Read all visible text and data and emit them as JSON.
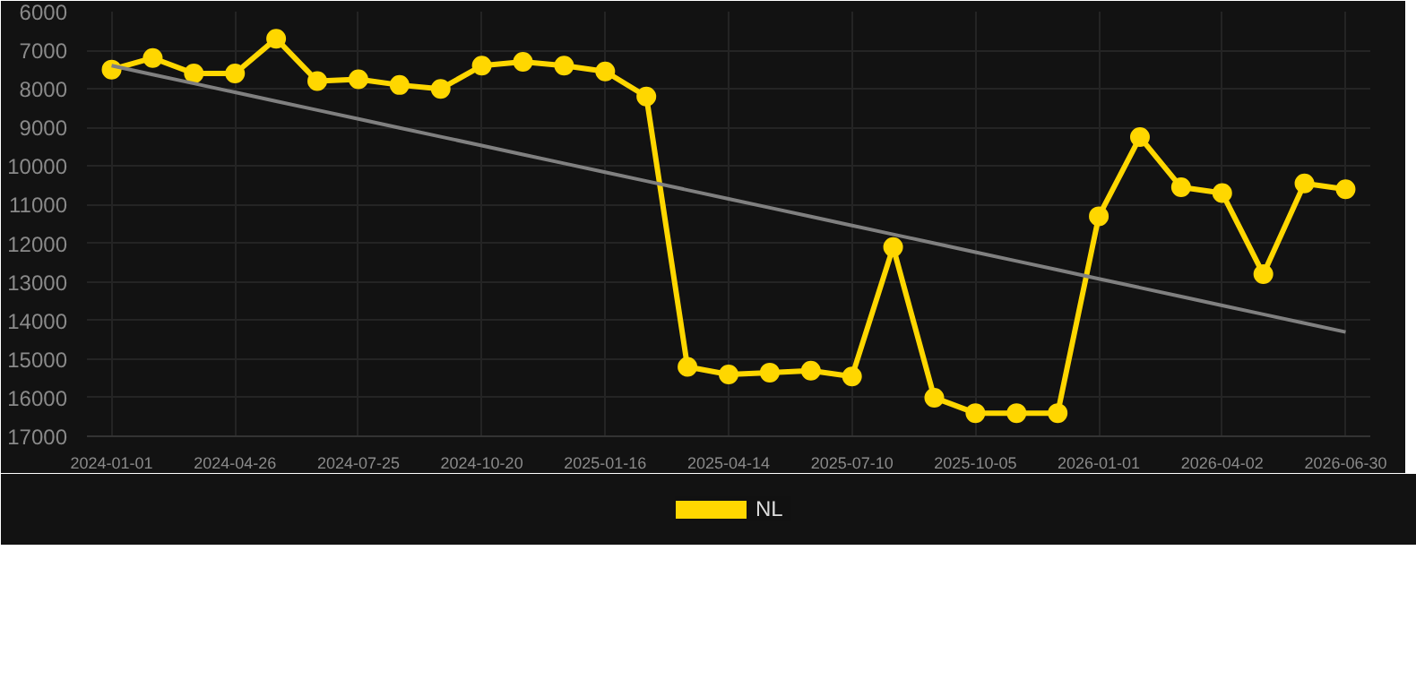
{
  "chart_data": {
    "type": "line",
    "categories": [
      "2024-01-01",
      null,
      null,
      "2024-04-26",
      null,
      null,
      "2024-07-25",
      null,
      null,
      "2024-10-20",
      null,
      null,
      "2025-01-16",
      null,
      null,
      "2025-04-14",
      null,
      null,
      "2025-07-10",
      null,
      null,
      "2025-10-05",
      null,
      null,
      "2026-01-01",
      null,
      null,
      "2026-04-02",
      null,
      null,
      "2026-06-30"
    ],
    "series": [
      {
        "name": "NL",
        "color": "#ffd700",
        "values": [
          7500,
          7200,
          7600,
          7600,
          6700,
          7800,
          7750,
          7900,
          8000,
          7400,
          7300,
          7400,
          7550,
          8200,
          15200,
          15400,
          15350,
          15300,
          15450,
          12100,
          16000,
          16400,
          16400,
          16400,
          11300,
          9250,
          10550,
          10700,
          12800,
          10450,
          10600
        ]
      },
      {
        "type": "line",
        "color": "#808080",
        "marker": "none",
        "values": [
          7400,
          7630,
          7860,
          8090,
          8320,
          8550,
          8780,
          9010,
          9240,
          9470,
          9700,
          9930,
          10160,
          10390,
          10620,
          10850,
          11080,
          11310,
          11540,
          11770,
          12000,
          12230,
          12460,
          12690,
          12920,
          13150,
          13380,
          13610,
          13840,
          14070,
          14300
        ]
      }
    ],
    "ylim": [
      17000,
      6000
    ],
    "yticks": [
      6000,
      7000,
      8000,
      9000,
      10000,
      11000,
      12000,
      13000,
      14000,
      15000,
      16000,
      17000
    ],
    "grid": true,
    "legend": "bottom",
    "marker": "circle",
    "line_style": "solid"
  }
}
